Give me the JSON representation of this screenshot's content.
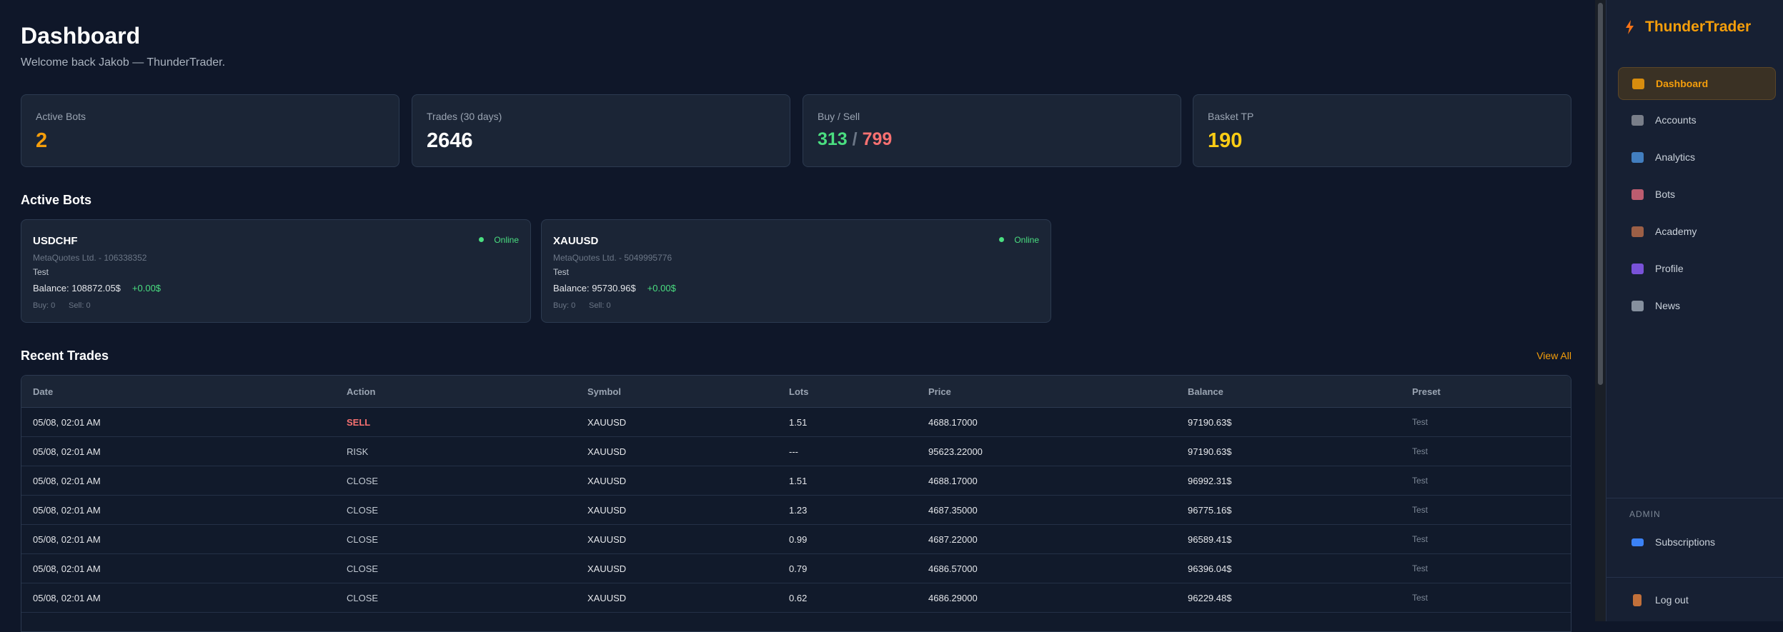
{
  "header": {
    "title": "Dashboard",
    "subtitle": "Welcome back Jakob — ThunderTrader."
  },
  "stats": [
    {
      "label": "Active Bots",
      "value": "2"
    },
    {
      "label": "Trades (30 days)",
      "value": "2646"
    },
    {
      "label": "Buy / Sell",
      "buy": "313",
      "separator": "/",
      "sell": "799"
    },
    {
      "label": "Basket TP",
      "value": "190"
    }
  ],
  "active_bots": {
    "heading": "Active Bots",
    "bots": [
      {
        "symbol": "USDCHF",
        "status": "Online",
        "account": "MetaQuotes Ltd. - 106338352",
        "preset": "Test",
        "balance_label": "Balance:",
        "balance": "108872.05$",
        "pnl": "+0.00$",
        "buy": "Buy: 0",
        "sell": "Sell: 0"
      },
      {
        "symbol": "XAUUSD",
        "status": "Online",
        "account": "MetaQuotes Ltd. - 5049995776",
        "preset": "Test",
        "balance_label": "Balance:",
        "balance": "95730.96$",
        "pnl": "+0.00$",
        "buy": "Buy: 0",
        "sell": "Sell: 0"
      }
    ]
  },
  "recent_trades": {
    "heading": "Recent Trades",
    "view_all": "View All",
    "columns": [
      "Date",
      "Action",
      "Symbol",
      "Lots",
      "Price",
      "Balance",
      "Preset"
    ],
    "rows": [
      [
        "05/08, 02:01 AM",
        "SELL",
        "XAUUSD",
        "1.51",
        "4688.17000",
        "97190.63$",
        "Test"
      ],
      [
        "05/08, 02:01 AM",
        "RISK",
        "XAUUSD",
        "---",
        "95623.22000",
        "97190.63$",
        "Test"
      ],
      [
        "05/08, 02:01 AM",
        "CLOSE",
        "XAUUSD",
        "1.51",
        "4688.17000",
        "96992.31$",
        "Test"
      ],
      [
        "05/08, 02:01 AM",
        "CLOSE",
        "XAUUSD",
        "1.23",
        "4687.35000",
        "96775.16$",
        "Test"
      ],
      [
        "05/08, 02:01 AM",
        "CLOSE",
        "XAUUSD",
        "0.99",
        "4687.22000",
        "96589.41$",
        "Test"
      ],
      [
        "05/08, 02:01 AM",
        "CLOSE",
        "XAUUSD",
        "0.79",
        "4686.57000",
        "96396.04$",
        "Test"
      ],
      [
        "05/08, 02:01 AM",
        "CLOSE",
        "XAUUSD",
        "0.62",
        "4686.29000",
        "96229.48$",
        "Test"
      ]
    ]
  },
  "sidebar": {
    "brand": "ThunderTrader",
    "nav": [
      "Dashboard",
      "Accounts",
      "Analytics",
      "Bots",
      "Academy",
      "Profile",
      "News"
    ],
    "admin_heading": "ADMIN",
    "admin_nav": [
      "Subscriptions"
    ],
    "logout": "Log out"
  }
}
